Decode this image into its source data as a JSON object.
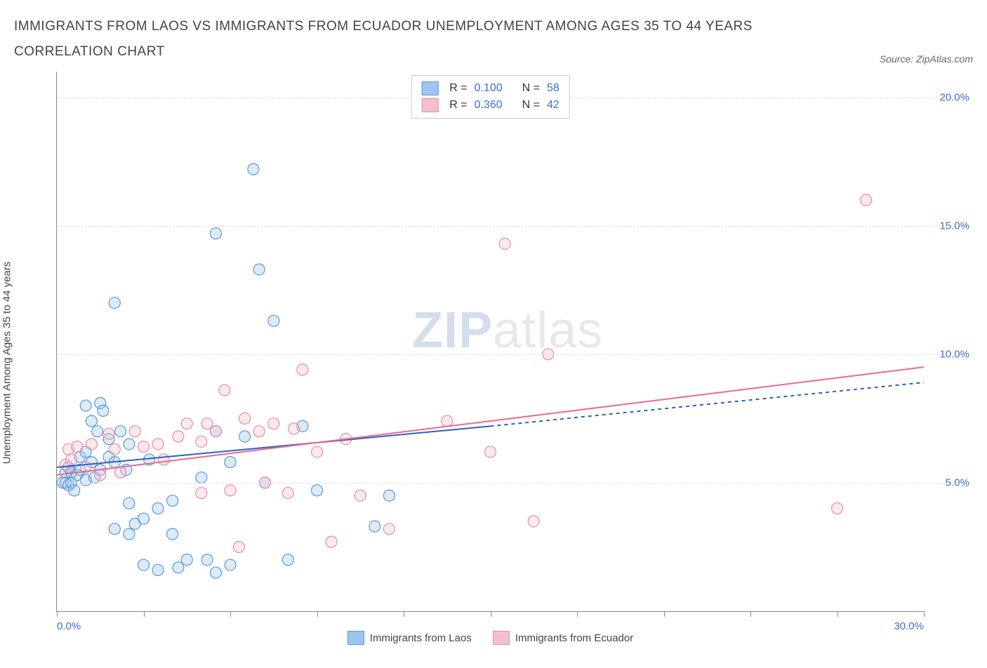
{
  "title": "IMMIGRANTS FROM LAOS VS IMMIGRANTS FROM ECUADOR UNEMPLOYMENT AMONG AGES 35 TO 44 YEARS CORRELATION CHART",
  "source": "Source: ZipAtlas.com",
  "y_axis_label": "Unemployment Among Ages 35 to 44 years",
  "watermark_bold": "ZIP",
  "watermark_light": "atlas",
  "chart": {
    "type": "scatter",
    "xlim": [
      0,
      30
    ],
    "ylim": [
      0,
      21
    ],
    "x_ticks": [
      0,
      3,
      6,
      9,
      12,
      15,
      18,
      21,
      24,
      27,
      30
    ],
    "x_tick_labels_shown": {
      "0": "0.0%",
      "30": "30.0%"
    },
    "y_ticks": [
      5,
      10,
      15,
      20
    ],
    "y_tick_labels": {
      "5": "5.0%",
      "10": "10.0%",
      "15": "15.0%",
      "20": "20.0%"
    },
    "background_color": "#ffffff",
    "grid_color": "#dddddd",
    "marker_radius": 8,
    "marker_stroke_width": 1.2,
    "marker_fill_opacity": 0.35,
    "trend_line_width": 2
  },
  "series": [
    {
      "key": "laos",
      "label": "Immigrants from Laos",
      "fill": "#9ec4ef",
      "stroke": "#5a9bd8",
      "line_color": "#2b5fc7",
      "dash_extend": "5,5",
      "R": "0.100",
      "N": "58",
      "trend": {
        "x1": 0,
        "y1": 5.6,
        "x2": 15,
        "y2": 7.2,
        "x2_ext": 30,
        "y2_ext": 8.9
      },
      "points": [
        [
          0.2,
          5.0
        ],
        [
          0.3,
          5.0
        ],
        [
          0.3,
          5.4
        ],
        [
          0.4,
          4.9
        ],
        [
          0.4,
          5.6
        ],
        [
          0.5,
          5.0
        ],
        [
          0.5,
          5.4
        ],
        [
          0.6,
          4.7
        ],
        [
          0.7,
          5.3
        ],
        [
          0.8,
          5.5
        ],
        [
          0.8,
          6.0
        ],
        [
          1.0,
          5.1
        ],
        [
          1.0,
          8.0
        ],
        [
          1.0,
          6.2
        ],
        [
          1.2,
          5.8
        ],
        [
          1.2,
          7.4
        ],
        [
          1.3,
          5.2
        ],
        [
          1.4,
          7.0
        ],
        [
          1.5,
          8.1
        ],
        [
          1.5,
          5.5
        ],
        [
          1.6,
          7.8
        ],
        [
          1.8,
          6.0
        ],
        [
          1.8,
          6.7
        ],
        [
          2.0,
          3.2
        ],
        [
          2.0,
          12.0
        ],
        [
          2.0,
          5.8
        ],
        [
          2.2,
          7.0
        ],
        [
          2.4,
          5.5
        ],
        [
          2.5,
          6.5
        ],
        [
          2.5,
          3.0
        ],
        [
          2.5,
          4.2
        ],
        [
          2.7,
          3.4
        ],
        [
          3.0,
          3.6
        ],
        [
          3.0,
          1.8
        ],
        [
          3.2,
          5.9
        ],
        [
          3.5,
          1.6
        ],
        [
          3.5,
          4.0
        ],
        [
          4.0,
          4.3
        ],
        [
          4.0,
          3.0
        ],
        [
          4.2,
          1.7
        ],
        [
          4.5,
          2.0
        ],
        [
          5.0,
          5.2
        ],
        [
          5.2,
          2.0
        ],
        [
          5.5,
          14.7
        ],
        [
          5.5,
          1.5
        ],
        [
          5.5,
          7.0
        ],
        [
          6.0,
          1.8
        ],
        [
          6.0,
          5.8
        ],
        [
          6.5,
          6.8
        ],
        [
          6.8,
          17.2
        ],
        [
          7.0,
          13.3
        ],
        [
          7.2,
          5.0
        ],
        [
          7.5,
          11.3
        ],
        [
          8.0,
          2.0
        ],
        [
          8.5,
          7.2
        ],
        [
          9.0,
          4.7
        ],
        [
          11.0,
          3.3
        ],
        [
          11.5,
          4.5
        ]
      ]
    },
    {
      "key": "ecuador",
      "label": "Immigrants from Ecuador",
      "fill": "#f5c0cb",
      "stroke": "#e98ba1",
      "line_color": "#e76a8e",
      "dash_extend": null,
      "R": "0.360",
      "N": "42",
      "trend": {
        "x1": 0,
        "y1": 5.3,
        "x2": 30,
        "y2": 9.5,
        "x2_ext": 30,
        "y2_ext": 9.5
      },
      "points": [
        [
          0.3,
          5.7
        ],
        [
          0.4,
          6.3
        ],
        [
          0.5,
          5.9
        ],
        [
          0.7,
          6.4
        ],
        [
          1.0,
          5.6
        ],
        [
          1.2,
          6.5
        ],
        [
          1.5,
          5.3
        ],
        [
          1.8,
          6.9
        ],
        [
          2.0,
          6.3
        ],
        [
          2.2,
          5.4
        ],
        [
          2.7,
          7.0
        ],
        [
          3.0,
          6.4
        ],
        [
          3.5,
          6.5
        ],
        [
          3.7,
          5.9
        ],
        [
          4.2,
          6.8
        ],
        [
          4.5,
          7.3
        ],
        [
          5.0,
          6.6
        ],
        [
          5.0,
          4.6
        ],
        [
          5.2,
          7.3
        ],
        [
          5.5,
          7.0
        ],
        [
          5.8,
          8.6
        ],
        [
          6.0,
          4.7
        ],
        [
          6.3,
          2.5
        ],
        [
          6.5,
          7.5
        ],
        [
          7.0,
          7.0
        ],
        [
          7.2,
          5.0
        ],
        [
          7.5,
          7.3
        ],
        [
          8.0,
          4.6
        ],
        [
          8.2,
          7.1
        ],
        [
          8.5,
          9.4
        ],
        [
          9.0,
          6.2
        ],
        [
          9.5,
          2.7
        ],
        [
          10.0,
          6.7
        ],
        [
          10.5,
          4.5
        ],
        [
          11.5,
          3.2
        ],
        [
          13.5,
          7.4
        ],
        [
          15.0,
          6.2
        ],
        [
          15.5,
          14.3
        ],
        [
          16.5,
          3.5
        ],
        [
          17.0,
          10.0
        ],
        [
          27.0,
          4.0
        ],
        [
          28.0,
          16.0
        ]
      ]
    }
  ],
  "legend_top": {
    "r_label": "R =",
    "n_label": "N ="
  }
}
